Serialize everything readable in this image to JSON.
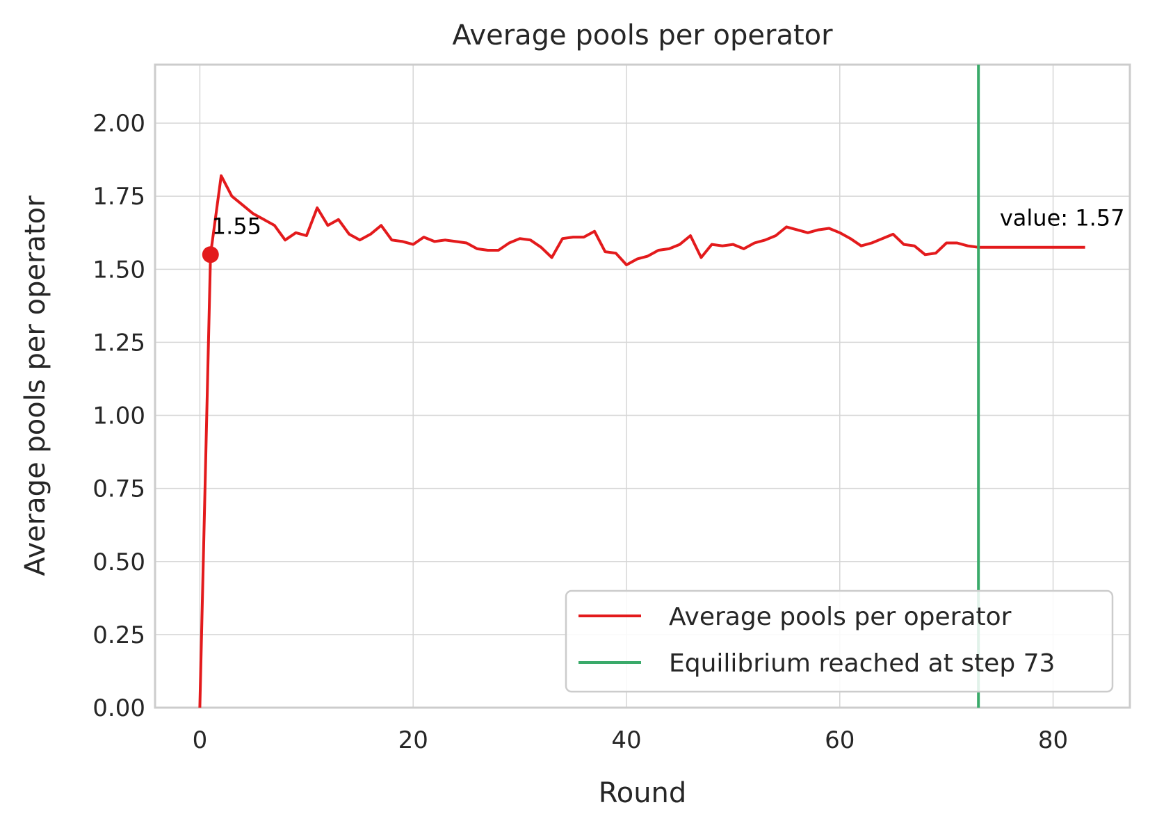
{
  "chart_data": {
    "type": "line",
    "title": "Average pools per operator",
    "xlabel": "Round",
    "ylabel": "Average pools per operator",
    "xlim": [
      -4.2,
      87.2
    ],
    "ylim": [
      0,
      2.2
    ],
    "x_ticks": [
      0,
      20,
      40,
      60,
      80
    ],
    "y_ticks": [
      "0.00",
      "0.25",
      "0.50",
      "0.75",
      "1.00",
      "1.25",
      "1.50",
      "1.75",
      "2.00"
    ],
    "grid": true,
    "legend_position": "lower-right",
    "series": [
      {
        "name": "Average pools per operator",
        "color": "#e31a1c",
        "x": [
          0,
          1,
          2,
          3,
          4,
          5,
          6,
          7,
          8,
          9,
          10,
          11,
          12,
          13,
          14,
          15,
          16,
          17,
          18,
          19,
          20,
          21,
          22,
          23,
          24,
          25,
          26,
          27,
          28,
          29,
          30,
          31,
          32,
          33,
          34,
          35,
          36,
          37,
          38,
          39,
          40,
          41,
          42,
          43,
          44,
          45,
          46,
          47,
          48,
          49,
          50,
          51,
          52,
          53,
          54,
          55,
          56,
          57,
          58,
          59,
          60,
          61,
          62,
          63,
          64,
          65,
          66,
          67,
          68,
          69,
          70,
          71,
          72,
          73,
          74,
          75,
          76,
          77,
          78,
          79,
          80,
          81,
          82,
          83
        ],
        "y": [
          0.0,
          1.55,
          1.82,
          1.75,
          1.72,
          1.69,
          1.67,
          1.65,
          1.6,
          1.625,
          1.615,
          1.71,
          1.65,
          1.67,
          1.62,
          1.6,
          1.62,
          1.65,
          1.6,
          1.595,
          1.585,
          1.61,
          1.595,
          1.6,
          1.595,
          1.59,
          1.57,
          1.565,
          1.565,
          1.59,
          1.605,
          1.6,
          1.575,
          1.54,
          1.605,
          1.61,
          1.61,
          1.63,
          1.56,
          1.555,
          1.515,
          1.535,
          1.545,
          1.565,
          1.57,
          1.585,
          1.615,
          1.54,
          1.585,
          1.58,
          1.585,
          1.57,
          1.59,
          1.6,
          1.615,
          1.645,
          1.635,
          1.625,
          1.635,
          1.64,
          1.625,
          1.605,
          1.58,
          1.59,
          1.605,
          1.62,
          1.585,
          1.58,
          1.55,
          1.555,
          1.59,
          1.59,
          1.58,
          1.575,
          1.575,
          1.575,
          1.575,
          1.575,
          1.575,
          1.575,
          1.575,
          1.575,
          1.575,
          1.575
        ]
      },
      {
        "name": "Equilibrium reached at step 73",
        "color": "#3aaa6a",
        "type": "vline",
        "x": 73
      }
    ],
    "annotations": [
      {
        "text": "1.55",
        "x": 1,
        "y": 1.55,
        "marker": true
      },
      {
        "text": "value: 1.57",
        "x": 75,
        "y": 1.65
      }
    ]
  }
}
